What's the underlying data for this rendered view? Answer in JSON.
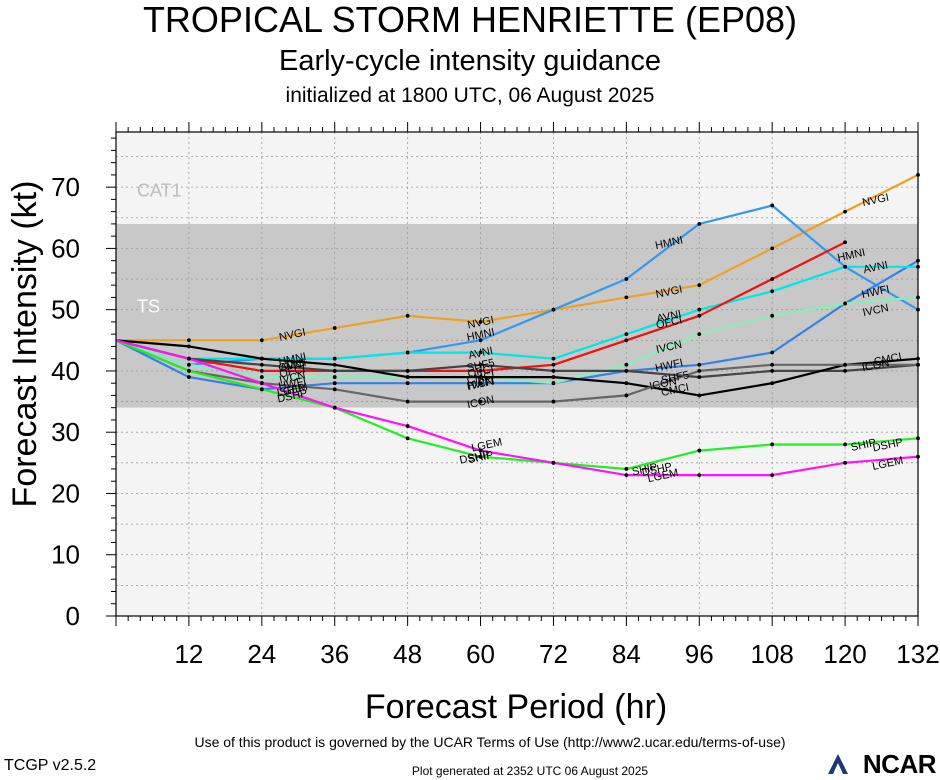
{
  "header": {
    "title": "TROPICAL STORM HENRIETTE (EP08)",
    "subtitle": "Early-cycle intensity guidance",
    "initialized": "initialized at 1800 UTC, 06 August 2025"
  },
  "footer": {
    "terms": "Use of this product is governed by the UCAR Terms of Use (http://www2.ucar.edu/terms-of-use)",
    "version": "TCGP v2.5.2",
    "generated": "Plot generated at 2352 UTC   06 August 2025",
    "logo": "NCAR",
    "logo_icon": "ncar-logo-icon"
  },
  "chart_data": {
    "type": "line",
    "xlabel": "Forecast Period (hr)",
    "ylabel": "Forecast Intensity (kt)",
    "xlim": [
      0,
      132
    ],
    "ylim": [
      0,
      79
    ],
    "xticks": [
      12,
      24,
      36,
      48,
      60,
      72,
      84,
      96,
      108,
      120,
      132
    ],
    "yticks": [
      0,
      10,
      20,
      30,
      40,
      50,
      60,
      70
    ],
    "bands": [
      {
        "label": "CAT1",
        "from": 64,
        "to": 79,
        "color": "#f4f4f4"
      },
      {
        "label": "TS",
        "from": 34,
        "to": 64,
        "color": "#c8c8c8"
      },
      {
        "label": "",
        "from": 0,
        "to": 34,
        "color": "#f4f4f4"
      }
    ],
    "series": [
      {
        "name": "NVGI",
        "color": "#f0a020",
        "x": [
          0,
          12,
          24,
          36,
          48,
          60,
          72,
          84,
          96,
          108,
          120,
          132
        ],
        "y": [
          45,
          45,
          45,
          47,
          49,
          48,
          50,
          52,
          54,
          60,
          66,
          72
        ]
      },
      {
        "name": "HMNI",
        "color": "#3399ee",
        "x": [
          0,
          12,
          24,
          36,
          48,
          60,
          72,
          84,
          96,
          108,
          120,
          132
        ],
        "y": [
          45,
          41,
          42,
          42,
          43,
          45,
          50,
          55,
          64,
          67,
          57,
          50
        ]
      },
      {
        "name": "HWFI",
        "color": "#3380e6",
        "x": [
          0,
          12,
          24,
          36,
          48,
          60,
          72,
          84,
          96,
          108,
          120,
          132
        ],
        "y": [
          45,
          39,
          37,
          38,
          38,
          38,
          38,
          40,
          41,
          43,
          51,
          58
        ]
      },
      {
        "name": "AVNI",
        "color": "#00e6e6",
        "x": [
          0,
          12,
          24,
          36,
          48,
          60,
          72,
          84,
          96,
          108,
          120,
          132
        ],
        "y": [
          45,
          42,
          42,
          42,
          43,
          43,
          42,
          46,
          50,
          53,
          57,
          57
        ]
      },
      {
        "name": "OFCI",
        "color": "#ee1111",
        "x": [
          0,
          12,
          24,
          36,
          48,
          60,
          72,
          84,
          96,
          108,
          120
        ],
        "y": [
          45,
          42,
          40,
          40,
          40,
          40,
          41,
          45,
          49,
          55,
          61
        ]
      },
      {
        "name": "IVCN",
        "color": "#88eebb",
        "x": [
          0,
          12,
          24,
          36,
          48,
          60,
          72,
          84,
          96,
          108,
          120,
          132
        ],
        "y": [
          45,
          41,
          39,
          39,
          39,
          39,
          38,
          41,
          46,
          49,
          51,
          52
        ]
      },
      {
        "name": "SHF5",
        "color": "#444444",
        "x": [
          0,
          12,
          24,
          36,
          48,
          60,
          72,
          84,
          96,
          108,
          120,
          132
        ],
        "y": [
          45,
          42,
          41,
          40,
          40,
          41,
          40,
          40,
          39,
          40,
          40,
          41
        ]
      },
      {
        "name": "CMCI",
        "color": "#000000",
        "x": [
          0,
          12,
          24,
          36,
          48,
          60,
          72,
          84,
          96,
          108,
          120,
          132
        ],
        "y": [
          45,
          44,
          42,
          41,
          39,
          39,
          39,
          38,
          36,
          38,
          41,
          42
        ]
      },
      {
        "name": "ICON",
        "color": "#666666",
        "x": [
          0,
          12,
          24,
          36,
          48,
          60,
          72,
          84,
          96,
          108,
          120,
          132
        ],
        "y": [
          45,
          40,
          38,
          37,
          35,
          35,
          35,
          36,
          40,
          41,
          41,
          41
        ]
      },
      {
        "name": "DSHP",
        "color": "#22ee22",
        "x": [
          0,
          12,
          24,
          36,
          48,
          60,
          72,
          84,
          96,
          108,
          120,
          132
        ],
        "y": [
          45,
          40,
          37,
          34,
          29,
          26,
          25,
          24,
          27,
          28,
          28,
          29
        ]
      },
      {
        "name": "LGEM",
        "color": "#ff11ff",
        "x": [
          0,
          12,
          24,
          36,
          48,
          60,
          72,
          84,
          96,
          108,
          120,
          132
        ],
        "y": [
          45,
          42,
          38,
          34,
          31,
          27,
          25,
          23,
          23,
          23,
          25,
          26
        ]
      }
    ],
    "point_labels": [
      {
        "text": "NVGI",
        "x": 29,
        "y": 46
      },
      {
        "text": "NVGI",
        "x": 60,
        "y": 48
      },
      {
        "text": "NVGI",
        "x": 91,
        "y": 53
      },
      {
        "text": "NVGI",
        "x": 125,
        "y": 68
      },
      {
        "text": "HMNI",
        "x": 29,
        "y": 42
      },
      {
        "text": "HMNI",
        "x": 60,
        "y": 46
      },
      {
        "text": "HMNI",
        "x": 91,
        "y": 61
      },
      {
        "text": "HMNI",
        "x": 121,
        "y": 59
      },
      {
        "text": "AVNI",
        "x": 29,
        "y": 41
      },
      {
        "text": "AVNI",
        "x": 60,
        "y": 43
      },
      {
        "text": "AVNI",
        "x": 91,
        "y": 49
      },
      {
        "text": "AVNI",
        "x": 125,
        "y": 57
      },
      {
        "text": "OFCI",
        "x": 29,
        "y": 40
      },
      {
        "text": "OFCI",
        "x": 91,
        "y": 48
      },
      {
        "text": "OFCI",
        "x": 60,
        "y": 40
      },
      {
        "text": "IVCN",
        "x": 29,
        "y": 39
      },
      {
        "text": "IVCN",
        "x": 60,
        "y": 38
      },
      {
        "text": "IVCN",
        "x": 91,
        "y": 44
      },
      {
        "text": "IVCN",
        "x": 125,
        "y": 50
      },
      {
        "text": "HWFI",
        "x": 29,
        "y": 38
      },
      {
        "text": "HWFI",
        "x": 60,
        "y": 38
      },
      {
        "text": "HWFI",
        "x": 91,
        "y": 41
      },
      {
        "text": "HWFI",
        "x": 125,
        "y": 53
      },
      {
        "text": "SHF5",
        "x": 60,
        "y": 41
      },
      {
        "text": "SHF5",
        "x": 92,
        "y": 39
      },
      {
        "text": "CMCI",
        "x": 29,
        "y": 41
      },
      {
        "text": "CMCI",
        "x": 60,
        "y": 39
      },
      {
        "text": "CMCI",
        "x": 92,
        "y": 37
      },
      {
        "text": "CMCI",
        "x": 127,
        "y": 42
      },
      {
        "text": "ICON",
        "x": 60,
        "y": 35
      },
      {
        "text": "ICON",
        "x": 90,
        "y": 38
      },
      {
        "text": "ICON",
        "x": 125,
        "y": 41
      },
      {
        "text": "DSHP",
        "x": 29,
        "y": 36
      },
      {
        "text": "DSHP",
        "x": 59,
        "y": 26
      },
      {
        "text": "DSHP",
        "x": 89,
        "y": 24
      },
      {
        "text": "DSHP",
        "x": 127,
        "y": 28
      },
      {
        "text": "SHIP",
        "x": 29,
        "y": 37
      },
      {
        "text": "SHIP",
        "x": 60,
        "y": 26
      },
      {
        "text": "SHIP",
        "x": 87,
        "y": 24
      },
      {
        "text": "SHIP",
        "x": 123,
        "y": 28
      },
      {
        "text": "LGEM",
        "x": 29,
        "y": 37
      },
      {
        "text": "LGEM",
        "x": 61,
        "y": 28
      },
      {
        "text": "LGEM",
        "x": 90,
        "y": 23
      },
      {
        "text": "LGEM",
        "x": 127,
        "y": 25
      }
    ]
  }
}
